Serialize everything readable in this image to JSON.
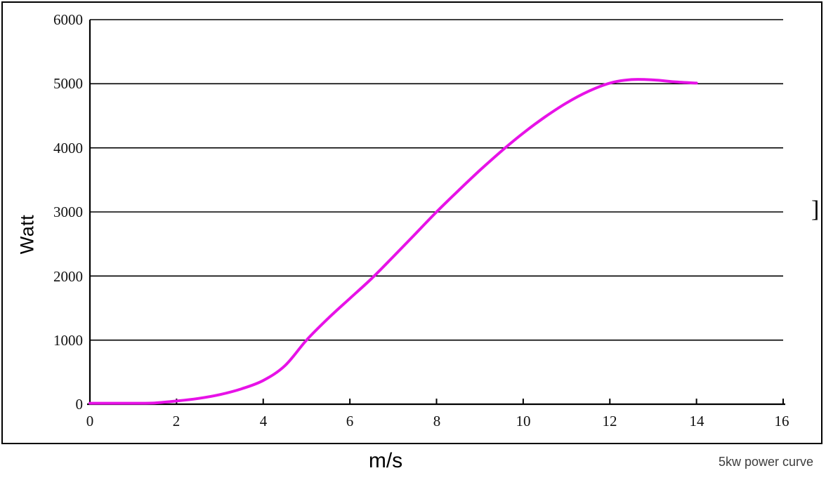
{
  "caption": "5kw power curve",
  "artifact_text": "]",
  "axes": {
    "y": {
      "title": "Watt",
      "labels": [
        "6000",
        "5000",
        "4000",
        "3000",
        "2000",
        "1000",
        "0"
      ]
    },
    "x": {
      "title": "m/s",
      "labels": [
        "0",
        "2",
        "4",
        "6",
        "8",
        "10",
        "12",
        "14",
        "16"
      ]
    }
  },
  "colors": {
    "curve": "#E712E7",
    "grid": "#000000",
    "axis": "#000000",
    "caption_text": "#3D3D3D"
  },
  "chart_data": {
    "type": "line",
    "title": "5kw power curve",
    "xlabel": "m/s",
    "ylabel": "Watt",
    "xlim": [
      0,
      16
    ],
    "ylim": [
      0,
      6000
    ],
    "x_ticks": [
      0,
      2,
      4,
      6,
      8,
      10,
      12,
      14,
      16
    ],
    "y_ticks": [
      0,
      1000,
      2000,
      3000,
      4000,
      5000,
      6000
    ],
    "grid": "horizontal",
    "legend": "none",
    "series": [
      {
        "name": "5kw power curve",
        "color": "#E712E7",
        "points": [
          [
            0,
            15
          ],
          [
            0.5,
            15
          ],
          [
            1,
            15
          ],
          [
            1.5,
            20
          ],
          [
            2,
            50
          ],
          [
            2.5,
            90
          ],
          [
            3,
            150
          ],
          [
            3.5,
            240
          ],
          [
            4,
            370
          ],
          [
            4.5,
            600
          ],
          [
            5,
            1000
          ],
          [
            5.5,
            1340
          ],
          [
            6,
            1650
          ],
          [
            6.5,
            1960
          ],
          [
            7,
            2300
          ],
          [
            7.5,
            2650
          ],
          [
            8,
            3000
          ],
          [
            8.5,
            3330
          ],
          [
            9,
            3650
          ],
          [
            9.5,
            3950
          ],
          [
            10,
            4230
          ],
          [
            10.5,
            4480
          ],
          [
            11,
            4700
          ],
          [
            11.5,
            4880
          ],
          [
            12,
            5010
          ],
          [
            12.5,
            5065
          ],
          [
            13,
            5060
          ],
          [
            13.5,
            5030
          ],
          [
            14,
            5010
          ]
        ]
      }
    ]
  }
}
